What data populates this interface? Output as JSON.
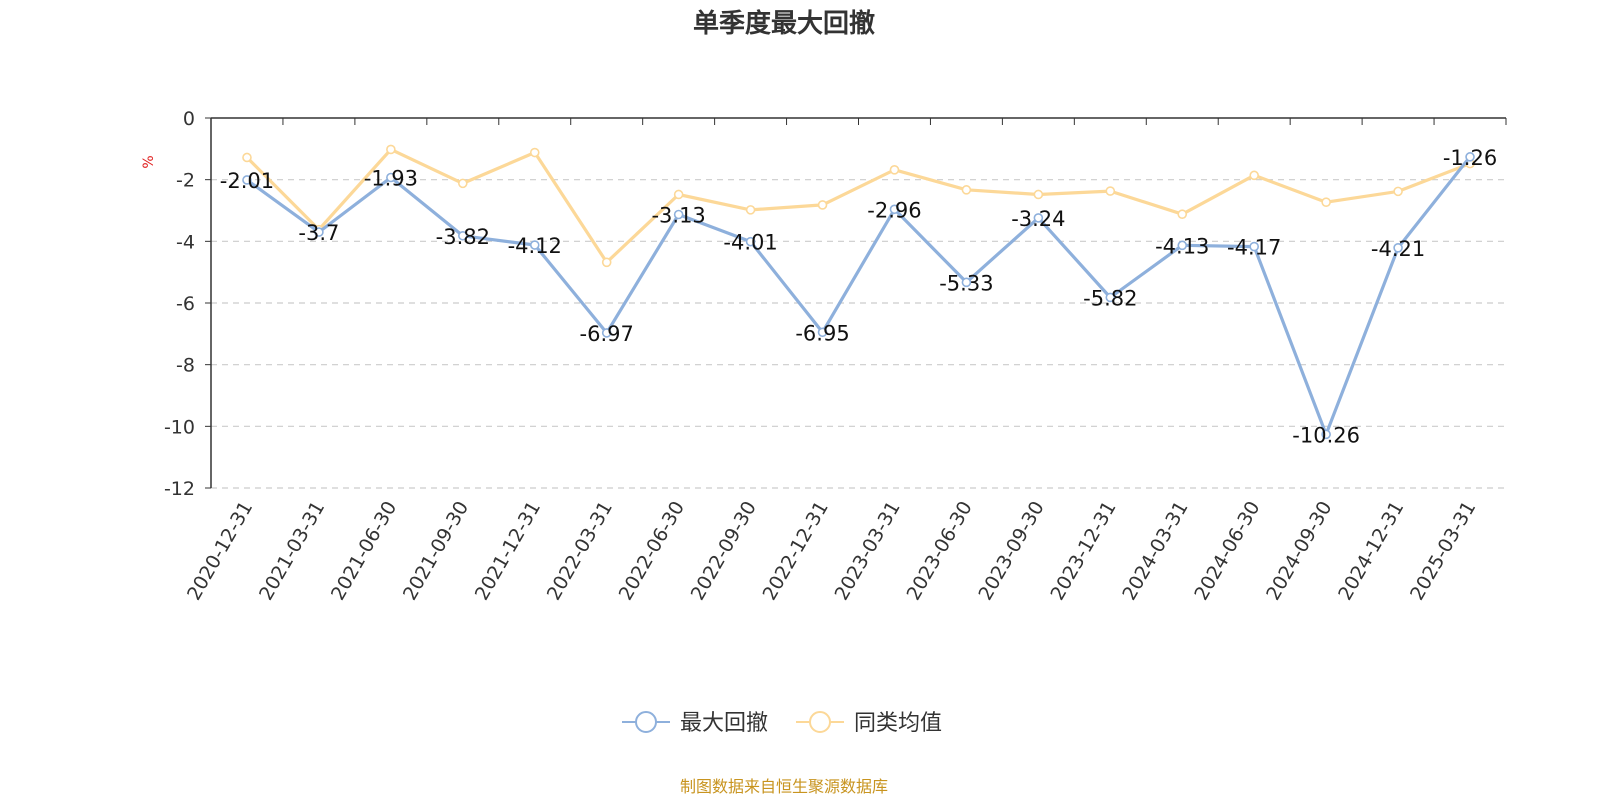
{
  "chart_data": {
    "type": "line",
    "title": "单季度最大回撤",
    "ylabel": "%",
    "ylim": [
      -12,
      0
    ],
    "y_ticks": [
      0,
      -2,
      -4,
      -6,
      -8,
      -10,
      -12
    ],
    "grid": true,
    "legend_position": "bottom-center",
    "x": [
      "2020-12-31",
      "2021-03-31",
      "2021-06-30",
      "2021-09-30",
      "2021-12-31",
      "2022-03-31",
      "2022-06-30",
      "2022-09-30",
      "2022-12-31",
      "2023-03-31",
      "2023-06-30",
      "2023-09-30",
      "2023-12-31",
      "2024-03-31",
      "2024-06-30",
      "2024-09-30",
      "2024-12-31",
      "2025-03-31"
    ],
    "series": [
      {
        "name": "最大回撤",
        "color": "#8eb0dc",
        "values": [
          -2.01,
          -3.7,
          -1.93,
          -3.82,
          -4.12,
          -6.97,
          -3.13,
          -4.01,
          -6.95,
          -2.96,
          -5.33,
          -3.24,
          -5.82,
          -4.13,
          -4.17,
          -10.26,
          -4.21,
          -1.26
        ],
        "data_labels": [
          "-2.01",
          "-3.7",
          "-1.93",
          "-3.82",
          "-4.12",
          "-6.97",
          "-3.13",
          "-4.01",
          "-6.95",
          "-2.96",
          "-5.33",
          "-3.24",
          "-5.82",
          "-4.13",
          "-4.17",
          "-10.26",
          "-4.21",
          "-1.26"
        ]
      },
      {
        "name": "同类均值",
        "color": "#fcd898",
        "values": [
          -1.28,
          -3.62,
          -1.02,
          -2.12,
          -1.12,
          -4.68,
          -2.48,
          -2.98,
          -2.82,
          -1.68,
          -2.33,
          -2.48,
          -2.37,
          -3.12,
          -1.86,
          -2.73,
          -2.38,
          -1.48
        ]
      }
    ]
  },
  "source_note": "制图数据来自恒生聚源数据库"
}
